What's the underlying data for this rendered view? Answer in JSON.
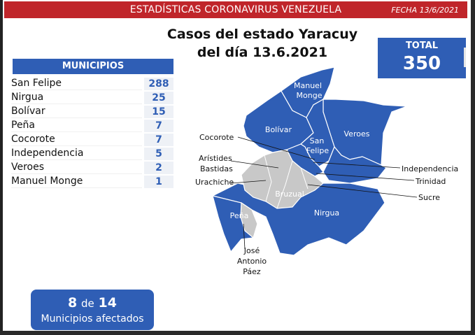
{
  "header": {
    "title": "ESTADÍSTICAS CORONAVIRUS VENEZUELA",
    "date": "FECHA 13/6/2021"
  },
  "title": {
    "line1": "Casos del estado Yaracuy",
    "line2": "del día 13.6.2021"
  },
  "total": {
    "label": "TOTAL",
    "value": "350"
  },
  "municipios": {
    "header": "MUNICIPIOS",
    "rows": [
      {
        "name": "San Felipe",
        "value": "288"
      },
      {
        "name": "Nirgua",
        "value": "25"
      },
      {
        "name": "Bolívar",
        "value": "15"
      },
      {
        "name": "Peña",
        "value": "7"
      },
      {
        "name": "Cocorote",
        "value": "7"
      },
      {
        "name": "Independencia",
        "value": "5"
      },
      {
        "name": "Veroes",
        "value": "2"
      },
      {
        "name": "Manuel Monge",
        "value": "1"
      }
    ]
  },
  "affected": {
    "count": "8",
    "of": "de",
    "total": "14",
    "label": "Municipios afectados"
  },
  "map": {
    "colors": {
      "affected": "#2f5eb5",
      "unaffected": "#c8c8c8",
      "border": "#ffffff"
    },
    "inner_labels": {
      "manuel_monge_1": "Manuel",
      "manuel_monge_2": "Monge",
      "bolivar": "Bolívar",
      "veroes": "Veroes",
      "san_felipe_1": "San",
      "san_felipe_2": "Felipe",
      "bruzual": "Bruzual",
      "nirgua": "Nirgua",
      "pena": "Peña"
    },
    "callouts": {
      "cocorote": "Cocorote",
      "aristides_1": "Arístides",
      "aristides_2": "Bastidas",
      "urachiche": "Urachiche",
      "independencia": "Independencia",
      "trinidad": "Trinidad",
      "sucre": "Sucre",
      "jose_1": "José",
      "jose_2": "Antonio",
      "jose_3": "Páez"
    }
  }
}
